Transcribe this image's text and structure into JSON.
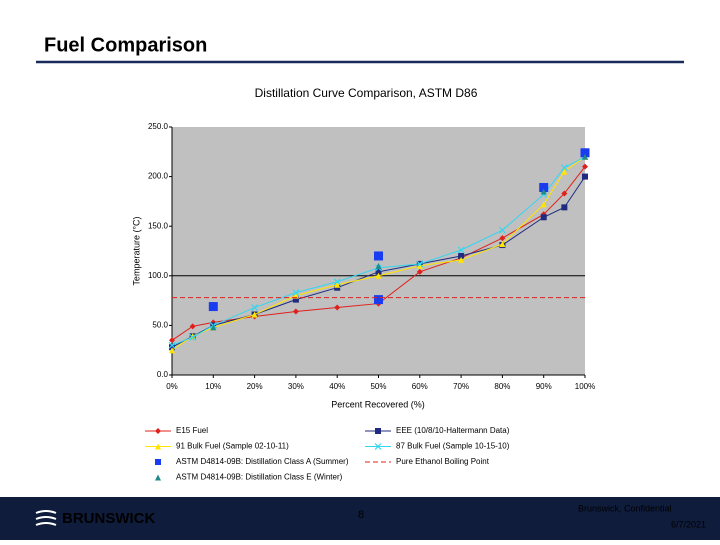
{
  "slide": {
    "title": "Fuel Comparison",
    "logo": "BRUNSWICK",
    "page_number": "8",
    "footer": "Brunswick, Confidential",
    "date": "6/7/2021"
  },
  "chart_data": {
    "type": "line",
    "title": "Distillation Curve Comparison, ASTM D86",
    "x_label": "Percent Recovered (%)",
    "y_label": "Temperature (°C)",
    "xlim": [
      0,
      100
    ],
    "ylim": [
      0,
      250
    ],
    "xticks": [
      {
        "value": 0,
        "label": "0%"
      },
      {
        "value": 10,
        "label": "10%"
      },
      {
        "value": 20,
        "label": "20%"
      },
      {
        "value": 30,
        "label": "30%"
      },
      {
        "value": 40,
        "label": "40%"
      },
      {
        "value": 50,
        "label": "50%"
      },
      {
        "value": 60,
        "label": "60%"
      },
      {
        "value": 70,
        "label": "70%"
      },
      {
        "value": 80,
        "label": "80%"
      },
      {
        "value": 90,
        "label": "90%"
      },
      {
        "value": 100,
        "label": "100%"
      }
    ],
    "yticks": [
      {
        "value": 0,
        "label": "0.0"
      },
      {
        "value": 50,
        "label": "50.0"
      },
      {
        "value": 100,
        "label": "100.0"
      },
      {
        "value": 150,
        "label": "150.0"
      },
      {
        "value": 200,
        "label": "200.0"
      },
      {
        "value": 250,
        "label": "250.0"
      }
    ],
    "plot_background": "#c0c0c0",
    "reference_lines": [
      {
        "value": 100,
        "color": "#000000"
      }
    ],
    "series": [
      {
        "name": "E15 Fuel",
        "color": "#e0201b",
        "marker": "diamond",
        "line": true,
        "x": [
          0,
          5,
          10,
          20,
          30,
          40,
          50,
          60,
          70,
          80,
          90,
          95,
          100
        ],
        "values": [
          35,
          49,
          53,
          59,
          64,
          68,
          72,
          104,
          118,
          138,
          162,
          183,
          210
        ]
      },
      {
        "name": "EEE (10/8/10-Haltermann Data)",
        "color": "#1f2a80",
        "marker": "square",
        "line": true,
        "x": [
          0,
          5,
          10,
          20,
          30,
          40,
          50,
          60,
          70,
          80,
          90,
          95,
          100
        ],
        "values": [
          28,
          39,
          50,
          61,
          76,
          88,
          104,
          112,
          120,
          131,
          159,
          169,
          200
        ]
      },
      {
        "name": "91 Bulk Fuel (Sample 02-10-11)",
        "color": "#ffe500",
        "marker": "triangle",
        "line": true,
        "x": [
          0,
          5,
          10,
          20,
          30,
          40,
          50,
          60,
          70,
          80,
          90,
          95,
          100
        ],
        "values": [
          25,
          39,
          48,
          61,
          80,
          91,
          100,
          110,
          116,
          132,
          172,
          205,
          220
        ]
      },
      {
        "name": "87 Bulk Fuel (Sample 10-15-10)",
        "color": "#33d6f0",
        "marker": "x",
        "line": true,
        "x": [
          0,
          5,
          10,
          20,
          30,
          40,
          50,
          60,
          70,
          80,
          90,
          95,
          100
        ],
        "values": [
          30,
          38,
          50,
          68,
          83,
          94,
          108,
          112,
          126,
          146,
          182,
          209,
          220
        ]
      },
      {
        "name": "ASTM D4814-09B: Distillation Class A (Summer)",
        "color": "#1a3cf0",
        "marker": "square-big",
        "line": false,
        "x": [
          10,
          50,
          50,
          90,
          100
        ],
        "values": [
          69,
          120,
          76,
          189,
          224
        ]
      },
      {
        "name": "Pure Ethanol Boiling Point",
        "color": "#e0201b",
        "marker": "none",
        "line": true,
        "dash": true,
        "x": [
          0,
          100
        ],
        "values": [
          78,
          78
        ]
      },
      {
        "name": "ASTM D4814-09B: Distillation Class E (Winter)",
        "color": "#1f8a8a",
        "marker": "triangle",
        "line": false,
        "x": [
          10,
          50,
          90,
          100
        ],
        "values": [
          48,
          110,
          185,
          220
        ]
      }
    ]
  }
}
